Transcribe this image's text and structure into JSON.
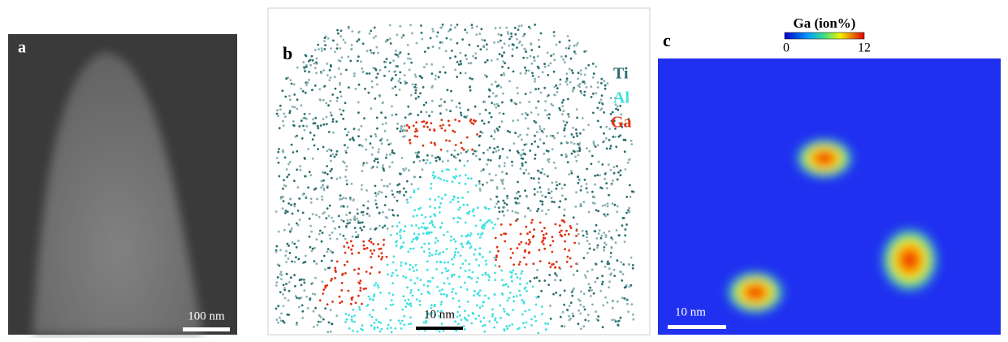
{
  "panels": [
    {
      "label": "a",
      "scale_bar": "100 nm"
    },
    {
      "label": "b",
      "legend": [
        "Ti",
        "Al",
        "Ga"
      ],
      "scale_bar": "10 nm"
    },
    {
      "label": "c",
      "colorbar": {
        "title": "Ga (ion%)",
        "ticks": [
          0,
          12
        ]
      },
      "scale_bar": "10 nm"
    }
  ]
}
